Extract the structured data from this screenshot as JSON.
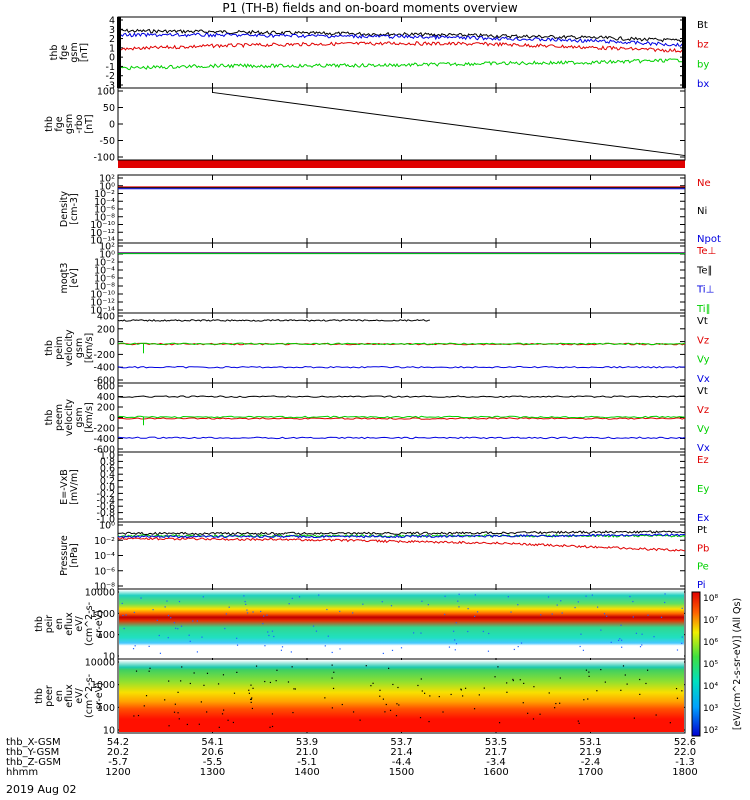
{
  "title": "P1 (TH-B) fields and on-board moments overview",
  "date": "2019 Aug 02",
  "colors": {
    "black": "#000000",
    "red": "#e00000",
    "green": "#00d000",
    "blue": "#0000e0"
  },
  "panels": [
    {
      "ylabel": [
        "thb",
        "fge",
        "gsm",
        "[nT]"
      ],
      "yticks": [
        "4",
        "3",
        "2",
        "1",
        "0",
        "-1",
        "-2",
        "-3"
      ],
      "legend": [
        {
          "text": "Bt",
          "color": "#000000"
        },
        {
          "text": "bz",
          "color": "#e00000"
        },
        {
          "text": "by",
          "color": "#00d000"
        },
        {
          "text": "bx",
          "color": "#0000e0"
        }
      ]
    },
    {
      "ylabel": [
        "thb",
        "fge",
        "gsm",
        "-rbo",
        "[nT]"
      ],
      "yticks": [
        "100",
        "50",
        "0",
        "-50",
        "-100"
      ],
      "legend": []
    },
    {
      "ylabel": [
        "Density",
        "[cm-3]"
      ],
      "yticks": [
        "10²",
        "10⁰",
        "10⁻²",
        "10⁻⁴",
        "10⁻⁶",
        "10⁻⁸",
        "10⁻¹⁰",
        "10⁻¹²",
        "10⁻¹⁴"
      ],
      "legend": [
        {
          "text": "Ne",
          "color": "#e00000"
        },
        {
          "text": "Ni",
          "color": "#000000"
        },
        {
          "text": "Npot",
          "color": "#0000e0"
        }
      ]
    },
    {
      "ylabel": [
        "moqt3",
        "[eV]"
      ],
      "yticks": [
        "10²",
        "10⁰",
        "10⁻²",
        "10⁻⁴",
        "10⁻⁶",
        "10⁻⁸",
        "10⁻¹⁰",
        "10⁻¹²",
        "10⁻¹⁴"
      ],
      "legend": [
        {
          "text": "Te⊥",
          "color": "#e00000"
        },
        {
          "text": "Te∥",
          "color": "#000000"
        },
        {
          "text": "Ti⊥",
          "color": "#0000e0"
        },
        {
          "text": "Ti∥",
          "color": "#00d000"
        }
      ]
    },
    {
      "ylabel": [
        "thb",
        "peim",
        "velocity",
        "gsm",
        "[km/s]"
      ],
      "yticks": [
        "400",
        "200",
        "0",
        "-200",
        "-400",
        "-600"
      ],
      "legend": [
        {
          "text": "Vt",
          "color": "#000000"
        },
        {
          "text": "Vz",
          "color": "#e00000"
        },
        {
          "text": "Vy",
          "color": "#00d000"
        },
        {
          "text": "Vx",
          "color": "#0000e0"
        }
      ]
    },
    {
      "ylabel": [
        "thb",
        "peem",
        "velocity",
        "gsm",
        "[km/s]"
      ],
      "yticks": [
        "600",
        "400",
        "200",
        "0",
        "-200",
        "-400",
        "-600"
      ],
      "legend": [
        {
          "text": "Vt",
          "color": "#000000"
        },
        {
          "text": "Vz",
          "color": "#e00000"
        },
        {
          "text": "Vy",
          "color": "#00d000"
        },
        {
          "text": "Vx",
          "color": "#0000e0"
        }
      ]
    },
    {
      "ylabel": [
        "E=-VxB",
        "[mV/m]"
      ],
      "yticks": [
        "1.0",
        "0.8",
        "0.6",
        "0.4",
        "0.2",
        "0.0",
        "-0.2",
        "-0.4",
        "-0.6",
        "-0.8",
        "-1.0"
      ],
      "legend": [
        {
          "text": "Ez",
          "color": "#e00000"
        },
        {
          "text": "Ey",
          "color": "#00d000"
        },
        {
          "text": "Ex",
          "color": "#0000e0"
        }
      ]
    },
    {
      "ylabel": [
        "Pressure",
        "[nPa]"
      ],
      "yticks": [
        "10⁰",
        "10⁻²",
        "10⁻⁴",
        "10⁻⁶",
        "10⁻⁸"
      ],
      "legend": [
        {
          "text": "Pt",
          "color": "#000000"
        },
        {
          "text": "Pb",
          "color": "#e00000"
        },
        {
          "text": "Pe",
          "color": "#00d000"
        },
        {
          "text": "Pi",
          "color": "#0000e0"
        }
      ]
    },
    {
      "ylabel": [
        "thb",
        "peir",
        "en",
        "eflux",
        "eV/",
        "(cm^2-s-",
        "sr-eV)"
      ],
      "yticks": [
        "10000",
        "1000",
        "100",
        "10"
      ],
      "legend": []
    },
    {
      "ylabel": [
        "thb",
        "peer",
        "en",
        "eflux",
        "eV/",
        "(cm^2-s-",
        "sr-eV)"
      ],
      "yticks": [
        "10000",
        "1000",
        "100",
        "10"
      ],
      "legend": []
    }
  ],
  "colorbar": {
    "ticks": [
      "10⁸",
      "10⁷",
      "10⁶",
      "10⁵",
      "10⁴",
      "10³",
      "10²"
    ],
    "label": "[eV/(cm^2-s-sr-eV)] (All Qs)"
  },
  "xaxis": {
    "rows": [
      {
        "label": "thb_X-GSM",
        "values": [
          "54.2",
          "54.1",
          "53.9",
          "53.7",
          "53.5",
          "53.1",
          "52.6"
        ]
      },
      {
        "label": "thb_Y-GSM",
        "values": [
          "20.2",
          "20.6",
          "21.0",
          "21.4",
          "21.7",
          "21.9",
          "22.0"
        ]
      },
      {
        "label": "thb_Z-GSM",
        "values": [
          "-5.7",
          "-5.5",
          "-5.1",
          "-4.4",
          "-3.4",
          "-2.4",
          "-1.3"
        ]
      },
      {
        "label": "hhmm",
        "values": [
          "1200",
          "1300",
          "1400",
          "1500",
          "1600",
          "1700",
          "1800"
        ]
      }
    ]
  },
  "chart_data": {
    "type": "line",
    "title": "P1 (TH-B) fields and on-board moments overview",
    "x_label": "hhmm",
    "x_ticks": [
      "1200",
      "1300",
      "1400",
      "1500",
      "1600",
      "1700",
      "1800"
    ],
    "panels": [
      {
        "ylabel": "thb fge gsm [nT]",
        "ylim": [
          -3.5,
          4.3
        ],
        "series": [
          {
            "name": "Bt",
            "color": "#000000",
            "x": [
              1200,
              1300,
              1400,
              1500,
              1600,
              1700,
              1800
            ],
            "values": [
              3.0,
              2.9,
              2.7,
              2.6,
              2.4,
              2.2,
              1.8
            ]
          },
          {
            "name": "bz",
            "color": "#e00000",
            "x": [
              1200,
              1300,
              1400,
              1500,
              1600,
              1700,
              1800
            ],
            "values": [
              0.8,
              1.2,
              1.4,
              1.5,
              1.4,
              1.0,
              0.6
            ]
          },
          {
            "name": "by",
            "color": "#00d000",
            "x": [
              1200,
              1300,
              1400,
              1500,
              1600,
              1700,
              1800
            ],
            "values": [
              -1.5,
              -1.2,
              -1.2,
              -1.1,
              -0.9,
              -0.8,
              -0.5
            ]
          },
          {
            "name": "bx",
            "color": "#0000e0",
            "x": [
              1200,
              1300,
              1400,
              1500,
              1600,
              1700,
              1800
            ],
            "values": [
              2.5,
              2.5,
              2.4,
              2.3,
              2.1,
              1.8,
              1.3
            ]
          }
        ]
      },
      {
        "ylabel": "thb fge gsm -rbo [nT]",
        "ylim": [
          -125,
          105
        ],
        "series": [
          {
            "color": "#000000",
            "x": [
              1300,
              1800
            ],
            "values": [
              100,
              -120
            ]
          }
        ]
      },
      {
        "ylabel": "Density [cm-3]",
        "log": true,
        "ylim": [
          "1e-14",
          "1e2"
        ],
        "series": [
          {
            "name": "Ne",
            "color": "#e00000",
            "value": 0.5
          },
          {
            "name": "Ni",
            "color": "#000000",
            "value": 0.4
          },
          {
            "name": "Npot",
            "color": "#0000e0",
            "value": 0.3
          }
        ]
      },
      {
        "ylabel": "moqt3 [eV]",
        "log": true,
        "ylim": [
          "1e-14",
          "1e2"
        ],
        "series": [
          {
            "name": "Te⊥",
            "color": "#e00000",
            "value": 2
          },
          {
            "name": "Te∥",
            "color": "#000000",
            "value": 2
          },
          {
            "name": "Ti⊥",
            "color": "#0000e0",
            "value": 3
          },
          {
            "name": "Ti∥",
            "color": "#00d000",
            "value": 3
          }
        ]
      },
      {
        "ylabel": "thb peim velocity gsm [km/s]",
        "ylim": [
          -650,
          500
        ],
        "series": [
          {
            "name": "Vt",
            "color": "#000000",
            "value": 420
          },
          {
            "name": "Vz",
            "color": "#e00000",
            "value": -5
          },
          {
            "name": "Vy",
            "color": "#00d000",
            "value": 0
          },
          {
            "name": "Vx",
            "color": "#0000e0",
            "value": -420
          }
        ]
      },
      {
        "ylabel": "thb peem velocity gsm [km/s]",
        "ylim": [
          -650,
          650
        ],
        "series": [
          {
            "name": "Vt",
            "color": "#000000",
            "value": 430
          },
          {
            "name": "Vz",
            "color": "#e00000",
            "value": -20
          },
          {
            "name": "Vy",
            "color": "#00d000",
            "value": 10
          },
          {
            "name": "Vx",
            "color": "#0000e0",
            "value": -420
          }
        ]
      },
      {
        "ylabel": "E=-VxB [mV/m]",
        "ylim": [
          -1.0,
          1.0
        ],
        "series": []
      },
      {
        "ylabel": "Pressure [nPa]",
        "log": true,
        "ylim": [
          "1e-8",
          "1e-1"
        ],
        "series": [
          {
            "name": "Pt",
            "color": "#000000",
            "x": [
              1200,
              1500,
              1800
            ],
            "values": [
              0.012,
              0.012,
              0.02
            ]
          },
          {
            "name": "Pb",
            "color": "#e00000",
            "x": [
              1200,
              1500,
              1700,
              1800
            ],
            "values": [
              0.003,
              0.002,
              0.0008,
              0.0001
            ]
          },
          {
            "name": "Pe",
            "color": "#00d000",
            "x": [
              1200,
              1500,
              1800
            ],
            "values": [
              0.006,
              0.006,
              0.006
            ]
          },
          {
            "name": "Pi",
            "color": "#0000e0",
            "x": [
              1200,
              1500,
              1800
            ],
            "values": [
              0.005,
              0.005,
              0.008
            ]
          }
        ]
      },
      {
        "ylabel": "thb peir en eflux eV/(cm^2-s-sr-eV)",
        "type": "heatmap",
        "log": true,
        "ylim": [
          5,
          30000
        ]
      },
      {
        "ylabel": "thb peer en eflux eV/(cm^2-s-sr-eV)",
        "type": "heatmap",
        "log": true,
        "ylim": [
          5,
          30000
        ]
      }
    ]
  }
}
